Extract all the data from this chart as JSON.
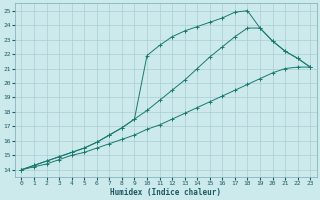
{
  "xlabel": "Humidex (Indice chaleur)",
  "ylabel": "",
  "bg_color": "#cce9ec",
  "grid_color": "#aacdd2",
  "line_color": "#1a7a6e",
  "xlim": [
    -0.5,
    23.5
  ],
  "ylim": [
    13.5,
    25.5
  ],
  "xticks": [
    0,
    1,
    2,
    3,
    4,
    5,
    6,
    7,
    8,
    9,
    10,
    11,
    12,
    13,
    14,
    15,
    16,
    17,
    18,
    19,
    20,
    21,
    22,
    23
  ],
  "yticks": [
    14,
    15,
    16,
    17,
    18,
    19,
    20,
    21,
    22,
    23,
    24,
    25
  ],
  "line1_x": [
    0,
    1,
    2,
    3,
    4,
    5,
    6,
    7,
    8,
    9,
    10,
    11,
    12,
    13,
    14,
    15,
    16,
    17,
    18,
    19,
    20,
    21,
    22,
    23
  ],
  "line1_y": [
    14.0,
    14.2,
    14.4,
    14.7,
    15.0,
    15.2,
    15.5,
    15.8,
    16.1,
    16.4,
    16.8,
    17.1,
    17.5,
    17.9,
    18.3,
    18.7,
    19.1,
    19.5,
    19.9,
    20.3,
    20.7,
    21.0,
    21.1,
    21.1
  ],
  "line2_x": [
    0,
    1,
    2,
    3,
    4,
    5,
    6,
    7,
    8,
    9,
    10,
    11,
    12,
    13,
    14,
    15,
    16,
    17,
    18,
    19,
    20,
    21,
    22,
    23
  ],
  "line2_y": [
    14.0,
    14.3,
    14.6,
    14.9,
    15.2,
    15.5,
    15.9,
    16.4,
    16.9,
    17.5,
    18.1,
    18.8,
    19.5,
    20.2,
    21.0,
    21.8,
    22.5,
    23.2,
    23.8,
    23.8,
    22.9,
    22.2,
    21.7,
    21.1
  ],
  "line3_x": [
    0,
    1,
    2,
    3,
    4,
    5,
    6,
    7,
    8,
    9,
    10,
    11,
    12,
    13,
    14,
    15,
    16,
    17,
    18,
    19,
    20,
    21,
    22,
    23
  ],
  "line3_y": [
    14.0,
    14.3,
    14.6,
    14.9,
    15.2,
    15.5,
    15.9,
    16.4,
    16.9,
    17.5,
    21.9,
    22.6,
    23.2,
    23.6,
    23.9,
    24.2,
    24.5,
    24.9,
    25.0,
    23.8,
    22.9,
    22.2,
    21.7,
    21.1
  ]
}
